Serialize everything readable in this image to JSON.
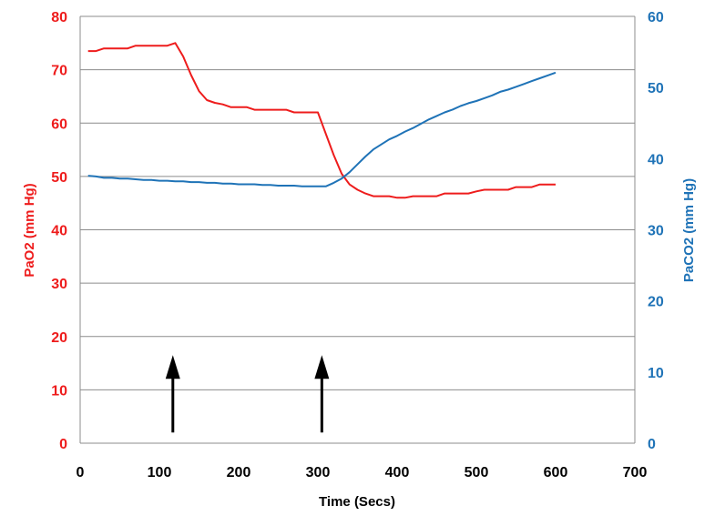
{
  "chart_data": {
    "type": "line",
    "title": "",
    "xlabel": "Time (Secs)",
    "ylabel": "PaO2 (mm Hg)",
    "y2label": "PaCO2 (mm Hg)",
    "xlim": [
      0,
      700
    ],
    "ylim": [
      0,
      80
    ],
    "y2lim": [
      0,
      60
    ],
    "xticks": [
      "0",
      "100",
      "200",
      "300",
      "400",
      "500",
      "600",
      "700"
    ],
    "yticks": [
      "0",
      "10",
      "20",
      "30",
      "40",
      "50",
      "60",
      "70",
      "80"
    ],
    "y2ticks": [
      "0",
      "10",
      "20",
      "30",
      "40",
      "50",
      "60"
    ],
    "grid": true,
    "legend": "none",
    "colors": {
      "pao2": "#ee1c1c",
      "paco2": "#1f73b7",
      "arrow": "#000000",
      "grid": "#8c8c8c"
    },
    "series": [
      {
        "axis": "left",
        "x": [
          10,
          20,
          30,
          40,
          50,
          60,
          70,
          80,
          90,
          100,
          110,
          120,
          130,
          140,
          150,
          160,
          170,
          180,
          190,
          200,
          210,
          220,
          230,
          240,
          250,
          260,
          270,
          280,
          290,
          300,
          310,
          320,
          330,
          340,
          350,
          360,
          370,
          380,
          390,
          400,
          410,
          420,
          430,
          440,
          450,
          460,
          470,
          480,
          490,
          500,
          510,
          520,
          530,
          540,
          550,
          560,
          570,
          580,
          590,
          600
        ],
        "values": [
          73.5,
          73.5,
          74,
          74,
          74,
          74,
          74.5,
          74.5,
          74.5,
          74.5,
          74.5,
          75,
          72.5,
          69,
          66,
          64.3,
          63.8,
          63.5,
          63,
          63,
          63,
          62.5,
          62.5,
          62.5,
          62.5,
          62.5,
          62,
          62,
          62,
          62,
          58,
          54,
          50.5,
          48.5,
          47.5,
          46.8,
          46.3,
          46.3,
          46.3,
          46,
          46,
          46.3,
          46.3,
          46.3,
          46.3,
          46.8,
          46.8,
          46.8,
          46.8,
          47.2,
          47.5,
          47.5,
          47.5,
          47.5,
          48,
          48,
          48,
          48.5,
          48.5,
          48.5
        ]
      },
      {
        "axis": "right",
        "x": [
          10,
          20,
          30,
          40,
          50,
          60,
          70,
          80,
          90,
          100,
          110,
          120,
          130,
          140,
          150,
          160,
          170,
          180,
          190,
          200,
          210,
          220,
          230,
          240,
          250,
          260,
          270,
          280,
          290,
          300,
          310,
          320,
          330,
          340,
          350,
          360,
          370,
          380,
          390,
          400,
          410,
          420,
          430,
          440,
          450,
          460,
          470,
          480,
          490,
          500,
          510,
          520,
          530,
          540,
          550,
          560,
          570,
          580,
          590,
          600
        ],
        "values": [
          37.6,
          37.5,
          37.3,
          37.3,
          37.2,
          37.2,
          37.1,
          37.0,
          37.0,
          36.9,
          36.9,
          36.8,
          36.8,
          36.7,
          36.7,
          36.6,
          36.6,
          36.5,
          36.5,
          36.4,
          36.4,
          36.4,
          36.3,
          36.3,
          36.2,
          36.2,
          36.2,
          36.1,
          36.1,
          36.1,
          36.1,
          36.6,
          37.2,
          38.1,
          39.2,
          40.3,
          41.3,
          42.0,
          42.7,
          43.2,
          43.8,
          44.3,
          44.9,
          45.5,
          46.0,
          46.5,
          46.9,
          47.4,
          47.8,
          48.1,
          48.5,
          48.9,
          49.4,
          49.7,
          50.1,
          50.5,
          50.9,
          51.3,
          51.7,
          52.1
        ]
      }
    ],
    "annotations": [
      {
        "type": "arrow",
        "x": 117,
        "y_from": 2,
        "y_to": 16.5
      },
      {
        "type": "arrow",
        "x": 305,
        "y_from": 2,
        "y_to": 16.5
      }
    ]
  }
}
